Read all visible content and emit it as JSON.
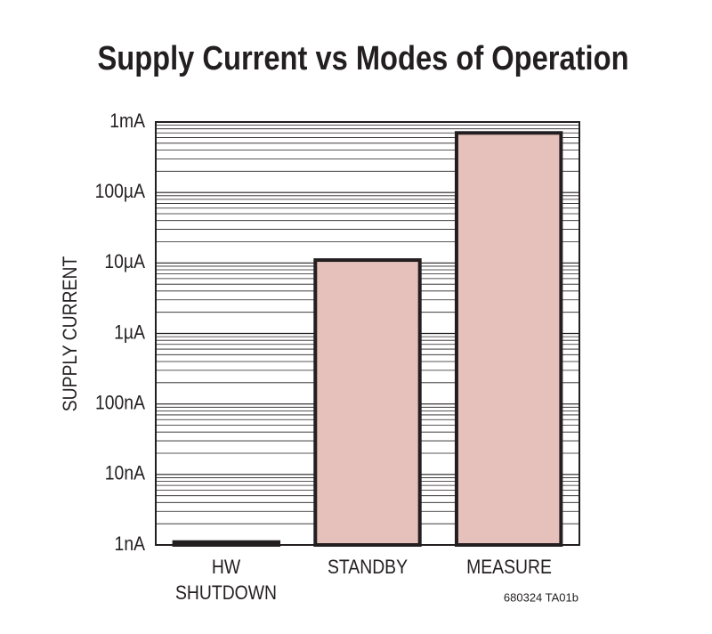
{
  "chart_data": {
    "type": "bar",
    "title": "Supply Current vs Modes of Operation",
    "y_label": "SUPPLY CURRENT",
    "categories": [
      "HW\nSHUTDOWN",
      "STANDBY",
      "MEASURE"
    ],
    "values": [
      1.1e-09,
      1.1e-05,
      0.0007
    ],
    "color": "#e6c0bb",
    "edge_color": "#231f20",
    "log_scale": true,
    "grid": true,
    "minor_grid": true,
    "ylim": [
      1e-09,
      0.001
    ],
    "yticks": [
      {
        "value": 1e-09,
        "label": "1nA"
      },
      {
        "value": 1e-08,
        "label": "10nA"
      },
      {
        "value": 1e-07,
        "label": "100nA"
      },
      {
        "value": 1e-06,
        "label": "1µA"
      },
      {
        "value": 1e-05,
        "label": "10µA"
      },
      {
        "value": 0.0001,
        "label": "100µA"
      },
      {
        "value": 0.001,
        "label": "1mA"
      }
    ],
    "note": "680324 TA01b"
  }
}
